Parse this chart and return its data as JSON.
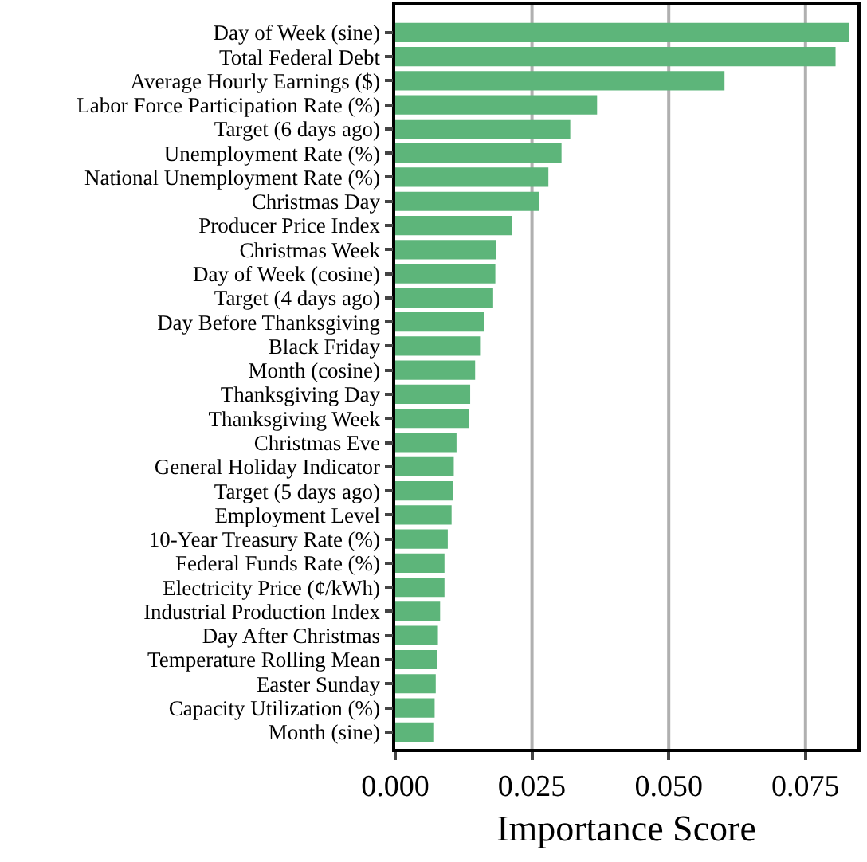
{
  "chart_data": {
    "type": "bar",
    "orientation": "horizontal",
    "xlabel": "Importance Score",
    "categories": [
      "Day of Week (sine)",
      "Total Federal Debt",
      "Average Hourly Earnings ($)",
      "Labor Force Participation Rate (%)",
      "Target (6 days ago)",
      "Unemployment Rate (%)",
      "National Unemployment Rate (%)",
      "Christmas Day",
      "Producer Price Index",
      "Christmas Week",
      "Day of Week (cosine)",
      "Target (4 days ago)",
      "Day Before Thanksgiving",
      "Black Friday",
      "Month (cosine)",
      "Thanksgiving Day",
      "Thanksgiving Week",
      "Christmas Eve",
      "General Holiday Indicator",
      "Target (5 days ago)",
      "Employment Level",
      "10-Year Treasury Rate (%)",
      "Federal Funds Rate (%)",
      "Electricity Price (¢/kWh)",
      "Industrial Production Index",
      "Day After Christmas",
      "Temperature Rolling Mean",
      "Easter Sunday",
      "Capacity Utilization (%)",
      "Month (sine)"
    ],
    "values": [
      0.0829,
      0.0805,
      0.0602,
      0.0369,
      0.032,
      0.0304,
      0.028,
      0.0263,
      0.0214,
      0.0185,
      0.0183,
      0.0179,
      0.0163,
      0.0155,
      0.0146,
      0.0137,
      0.0135,
      0.0112,
      0.0107,
      0.0105,
      0.0103,
      0.0096,
      0.009,
      0.009,
      0.0082,
      0.0078,
      0.0076,
      0.0074,
      0.0072,
      0.0071
    ],
    "color": "#5db57a",
    "xlim": [
      0,
      0.0845
    ],
    "xticks": [
      {
        "value": 0,
        "label": "0.000"
      },
      {
        "value": 0.025,
        "label": "0.025"
      },
      {
        "value": 0.05,
        "label": "0.050"
      },
      {
        "value": 0.075,
        "label": "0.075"
      }
    ],
    "grid": "x"
  }
}
